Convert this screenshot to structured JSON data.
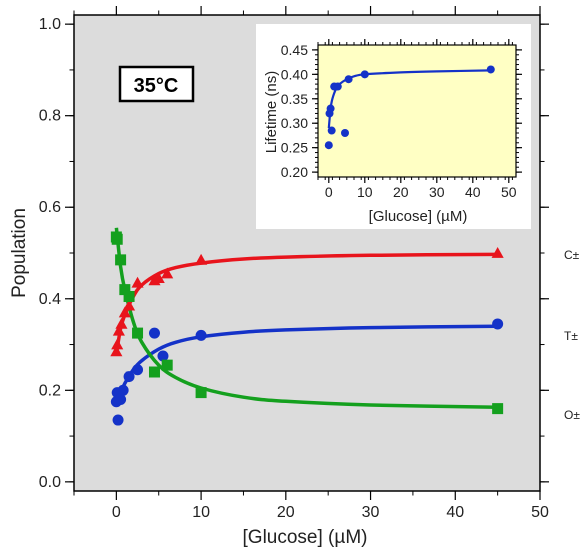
{
  "chart_data": [
    {
      "type": "scatter",
      "panel": "main",
      "title": "",
      "annotation": "35°C",
      "xlabel": "[Glucose] (µM)",
      "ylabel": "Population",
      "xlim": [
        -5,
        50
      ],
      "ylim": [
        -0.02,
        1.02
      ],
      "x_ticks": [
        0,
        10,
        20,
        30,
        40,
        50
      ],
      "y_ticks": [
        0.0,
        0.2,
        0.4,
        0.6,
        0.8,
        1.0
      ],
      "grid": false,
      "series": [
        {
          "name": "C±",
          "marker": "triangle",
          "color": "#e8141c",
          "points": [
            [
              0,
              0.285
            ],
            [
              0.1,
              0.3
            ],
            [
              0.3,
              0.33
            ],
            [
              0.6,
              0.345
            ],
            [
              1.0,
              0.37
            ],
            [
              1.5,
              0.385
            ],
            [
              2.5,
              0.435
            ],
            [
              4.5,
              0.44
            ],
            [
              5.0,
              0.445
            ],
            [
              6.0,
              0.455
            ],
            [
              10,
              0.485
            ],
            [
              45,
              0.5
            ]
          ],
          "fit": [
            [
              0,
              0.28
            ],
            [
              0.5,
              0.335
            ],
            [
              1,
              0.365
            ],
            [
              2,
              0.405
            ],
            [
              3,
              0.43
            ],
            [
              5,
              0.455
            ],
            [
              7,
              0.468
            ],
            [
              10,
              0.478
            ],
            [
              15,
              0.487
            ],
            [
              20,
              0.491
            ],
            [
              30,
              0.495
            ],
            [
              45,
              0.497
            ]
          ]
        },
        {
          "name": "T±",
          "marker": "circle",
          "color": "#1432c8",
          "points": [
            [
              0,
              0.175
            ],
            [
              0.1,
              0.195
            ],
            [
              0.2,
              0.135
            ],
            [
              0.5,
              0.18
            ],
            [
              0.8,
              0.2
            ],
            [
              1.5,
              0.23
            ],
            [
              2.5,
              0.245
            ],
            [
              4.5,
              0.325
            ],
            [
              5.5,
              0.275
            ],
            [
              10,
              0.32
            ],
            [
              45,
              0.345
            ]
          ],
          "fit": [
            [
              0,
              0.165
            ],
            [
              0.5,
              0.195
            ],
            [
              1,
              0.215
            ],
            [
              2,
              0.245
            ],
            [
              3,
              0.265
            ],
            [
              5,
              0.29
            ],
            [
              7,
              0.305
            ],
            [
              10,
              0.317
            ],
            [
              15,
              0.327
            ],
            [
              20,
              0.332
            ],
            [
              30,
              0.337
            ],
            [
              45,
              0.34
            ]
          ]
        },
        {
          "name": "O±",
          "marker": "square",
          "color": "#14a01e",
          "points": [
            [
              0,
              0.535
            ],
            [
              0.1,
              0.53
            ],
            [
              0.5,
              0.485
            ],
            [
              1.0,
              0.42
            ],
            [
              1.5,
              0.405
            ],
            [
              2.5,
              0.325
            ],
            [
              4.5,
              0.24
            ],
            [
              6.0,
              0.255
            ],
            [
              10,
              0.195
            ],
            [
              45,
              0.16
            ]
          ],
          "fit": [
            [
              0,
              0.555
            ],
            [
              0.5,
              0.47
            ],
            [
              1,
              0.42
            ],
            [
              2,
              0.35
            ],
            [
              3,
              0.305
            ],
            [
              5,
              0.255
            ],
            [
              7,
              0.228
            ],
            [
              10,
              0.205
            ],
            [
              15,
              0.185
            ],
            [
              20,
              0.176
            ],
            [
              30,
              0.168
            ],
            [
              45,
              0.163
            ]
          ]
        }
      ]
    },
    {
      "type": "scatter",
      "panel": "inset",
      "title": "",
      "xlabel": "[Glucose] (µM)",
      "ylabel": "Lifetime (ns)",
      "xlim": [
        -3,
        52
      ],
      "ylim": [
        0.19,
        0.46
      ],
      "x_ticks": [
        0,
        10,
        20,
        30,
        40,
        50
      ],
      "y_ticks": [
        0.2,
        0.25,
        0.3,
        0.35,
        0.4,
        0.45
      ],
      "series": [
        {
          "name": "",
          "marker": "circle",
          "color": "#1432c8",
          "points": [
            [
              0,
              0.255
            ],
            [
              0.2,
              0.32
            ],
            [
              0.5,
              0.33
            ],
            [
              0.8,
              0.285
            ],
            [
              1.5,
              0.375
            ],
            [
              2.5,
              0.375
            ],
            [
              4.5,
              0.28
            ],
            [
              5.5,
              0.39
            ],
            [
              10,
              0.4
            ],
            [
              45,
              0.41
            ]
          ],
          "fit": [
            [
              0,
              0.29
            ],
            [
              0.5,
              0.33
            ],
            [
              1,
              0.35
            ],
            [
              2,
              0.37
            ],
            [
              3,
              0.38
            ],
            [
              5,
              0.39
            ],
            [
              7,
              0.396
            ],
            [
              10,
              0.4
            ],
            [
              20,
              0.404
            ],
            [
              30,
              0.406
            ],
            [
              45,
              0.408
            ]
          ]
        }
      ]
    }
  ],
  "labels": {
    "c": "C±",
    "t": "T±",
    "o": "O±"
  }
}
